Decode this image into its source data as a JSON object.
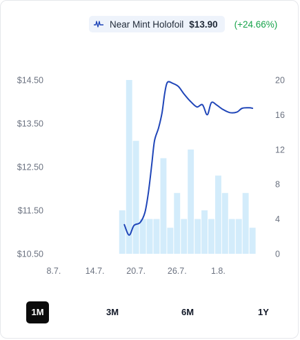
{
  "legend": {
    "icon": "price-chart-icon",
    "name": "Near Mint Holofoil",
    "price": "$13.90",
    "change": "(+24.66%)"
  },
  "colors": {
    "line": "#1f45b8",
    "bars": "#d3ecfb",
    "change_positive": "#16a34a",
    "active_range_bg": "#0b0b0b"
  },
  "ranges": [
    {
      "label": "1M",
      "active": true
    },
    {
      "label": "3M",
      "active": false
    },
    {
      "label": "6M",
      "active": false
    },
    {
      "label": "1Y",
      "active": false
    }
  ],
  "chart_data": {
    "type": "line",
    "x_ticks": [
      "8.7.",
      "14.7.",
      "20.7.",
      "26.7.",
      "1.8."
    ],
    "y_left_ticks": [
      "$10.50",
      "$11.50",
      "$12.50",
      "$13.50",
      "$14.50"
    ],
    "y_left_lim": [
      10.5,
      14.5
    ],
    "y_right_ticks": [
      "0",
      "4",
      "8",
      "12",
      "16",
      "20"
    ],
    "y_right_lim": [
      0,
      20
    ],
    "grid": false,
    "x_day_lim": [
      7,
      39
    ],
    "volume": {
      "days": [
        18,
        19,
        20,
        21,
        22,
        23,
        24,
        25,
        26,
        27,
        28,
        29,
        30,
        31,
        32,
        33,
        34,
        35,
        36,
        37
      ],
      "values": [
        5,
        20,
        13,
        4,
        4,
        4,
        11,
        3,
        7,
        4,
        12,
        4,
        5,
        4,
        9,
        7,
        4,
        4,
        7,
        3
      ]
    },
    "price": [
      {
        "day": 18.3,
        "value": 11.17
      },
      {
        "day": 19.0,
        "value": 10.93
      },
      {
        "day": 19.7,
        "value": 11.15
      },
      {
        "day": 20.6,
        "value": 11.22
      },
      {
        "day": 21.3,
        "value": 11.45
      },
      {
        "day": 21.8,
        "value": 11.9
      },
      {
        "day": 22.3,
        "value": 12.55
      },
      {
        "day": 22.7,
        "value": 13.1
      },
      {
        "day": 23.3,
        "value": 13.4
      },
      {
        "day": 23.8,
        "value": 13.75
      },
      {
        "day": 24.2,
        "value": 14.2
      },
      {
        "day": 24.6,
        "value": 14.45
      },
      {
        "day": 25.4,
        "value": 14.42
      },
      {
        "day": 26.2,
        "value": 14.35
      },
      {
        "day": 27.0,
        "value": 14.18
      },
      {
        "day": 28.0,
        "value": 14.0
      },
      {
        "day": 28.9,
        "value": 13.88
      },
      {
        "day": 29.7,
        "value": 13.93
      },
      {
        "day": 30.4,
        "value": 13.7
      },
      {
        "day": 31.0,
        "value": 13.98
      },
      {
        "day": 31.8,
        "value": 13.92
      },
      {
        "day": 32.7,
        "value": 13.82
      },
      {
        "day": 33.7,
        "value": 13.75
      },
      {
        "day": 34.7,
        "value": 13.76
      },
      {
        "day": 35.5,
        "value": 13.85
      },
      {
        "day": 36.5,
        "value": 13.86
      },
      {
        "day": 37.0,
        "value": 13.85
      }
    ]
  }
}
